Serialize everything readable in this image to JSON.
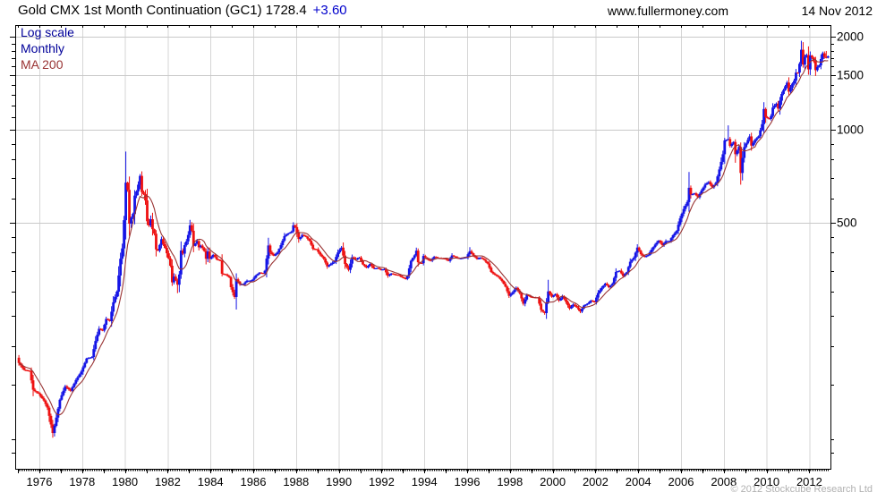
{
  "header": {
    "title": "Gold CMX 1st Month Continuation (GC1) 1728.4",
    "change": "+3.60",
    "website": "www.fullermoney.com",
    "date": "14 Nov 2012"
  },
  "legend": {
    "scale_label": "Log scale",
    "interval_label": "Monthly",
    "ma_label": "MA 200"
  },
  "footer": {
    "copyright": "© 2012 Stockcube Research Ltd"
  },
  "colors": {
    "up_candle": "#1414e6",
    "down_candle": "#ee1111",
    "ma_line": "#993333",
    "grid_vertical": "#d6d6d6",
    "grid_horizontal": "#c9c9c9",
    "axis": "#000000",
    "legend_blue": "#000099",
    "legend_brick": "#993333",
    "change_blue": "#0000cc",
    "copyright_gray": "#b0b0b0"
  },
  "chart_data": {
    "type": "candlestick",
    "symbol": "GC1",
    "scale": "log",
    "interval": "monthly",
    "ma_label": "MA 200",
    "last_price": 1728.4,
    "change": 3.6,
    "xlim_years": [
      1974.9,
      2012.95
    ],
    "ylim": [
      80,
      2180
    ],
    "y_ticks": [
      2000,
      1500,
      1000,
      500
    ],
    "y_minor_ticks": [
      90,
      100,
      150,
      200,
      250,
      300,
      350,
      400,
      450,
      500,
      600,
      700,
      800,
      900,
      1000,
      1100,
      1200,
      1300,
      1400,
      1500,
      1600,
      1700,
      1800,
      1900,
      2000
    ],
    "x_ticks": [
      1976,
      1978,
      1980,
      1982,
      1984,
      1986,
      1988,
      1990,
      1992,
      1994,
      1996,
      1998,
      2000,
      2002,
      2004,
      2006,
      2008,
      2010,
      2012
    ],
    "monthly_close_anchors": [
      [
        1975.04,
        176
      ],
      [
        1975.29,
        167
      ],
      [
        1975.54,
        166
      ],
      [
        1975.71,
        144
      ],
      [
        1975.96,
        140
      ],
      [
        1976.21,
        133
      ],
      [
        1976.38,
        126
      ],
      [
        1976.63,
        104
      ],
      [
        1976.79,
        117
      ],
      [
        1976.96,
        134
      ],
      [
        1977.21,
        148
      ],
      [
        1977.46,
        143
      ],
      [
        1977.71,
        155
      ],
      [
        1977.96,
        165
      ],
      [
        1978.21,
        182
      ],
      [
        1978.46,
        184
      ],
      [
        1978.63,
        208
      ],
      [
        1978.79,
        227
      ],
      [
        1978.96,
        224
      ],
      [
        1979.13,
        245
      ],
      [
        1979.29,
        240
      ],
      [
        1979.46,
        277
      ],
      [
        1979.63,
        300
      ],
      [
        1979.79,
        382
      ],
      [
        1979.88,
        415
      ],
      [
        1979.96,
        512
      ],
      [
        1980.04,
        675
      ],
      [
        1980.13,
        637
      ],
      [
        1980.21,
        494
      ],
      [
        1980.29,
        518
      ],
      [
        1980.38,
        535
      ],
      [
        1980.46,
        614
      ],
      [
        1980.54,
        631
      ],
      [
        1980.63,
        666
      ],
      [
        1980.71,
        710
      ],
      [
        1980.79,
        629
      ],
      [
        1980.88,
        619
      ],
      [
        1980.96,
        590
      ],
      [
        1981.04,
        506
      ],
      [
        1981.13,
        489
      ],
      [
        1981.21,
        514
      ],
      [
        1981.29,
        477
      ],
      [
        1981.38,
        460
      ],
      [
        1981.46,
        409
      ],
      [
        1981.54,
        406
      ],
      [
        1981.63,
        425
      ],
      [
        1981.71,
        443
      ],
      [
        1981.79,
        427
      ],
      [
        1981.88,
        414
      ],
      [
        1981.96,
        398
      ],
      [
        1982.04,
        384
      ],
      [
        1982.13,
        362
      ],
      [
        1982.21,
        320
      ],
      [
        1982.29,
        335
      ],
      [
        1982.38,
        325
      ],
      [
        1982.46,
        315
      ],
      [
        1982.54,
        339
      ],
      [
        1982.63,
        411
      ],
      [
        1982.71,
        397
      ],
      [
        1982.79,
        423
      ],
      [
        1982.88,
        436
      ],
      [
        1982.96,
        457
      ],
      [
        1983.04,
        491
      ],
      [
        1983.13,
        470
      ],
      [
        1983.21,
        420
      ],
      [
        1983.29,
        429
      ],
      [
        1983.38,
        437
      ],
      [
        1983.46,
        416
      ],
      [
        1983.54,
        422
      ],
      [
        1983.63,
        414
      ],
      [
        1983.71,
        405
      ],
      [
        1983.79,
        382
      ],
      [
        1983.88,
        405
      ],
      [
        1983.96,
        382
      ],
      [
        1984.13,
        394
      ],
      [
        1984.29,
        381
      ],
      [
        1984.46,
        377
      ],
      [
        1984.54,
        342
      ],
      [
        1984.71,
        340
      ],
      [
        1984.88,
        333
      ],
      [
        1984.96,
        309
      ],
      [
        1985.13,
        287
      ],
      [
        1985.21,
        329
      ],
      [
        1985.38,
        316
      ],
      [
        1985.54,
        317
      ],
      [
        1985.71,
        325
      ],
      [
        1985.88,
        325
      ],
      [
        1985.96,
        327
      ],
      [
        1986.13,
        338
      ],
      [
        1986.29,
        345
      ],
      [
        1986.46,
        343
      ],
      [
        1986.54,
        349
      ],
      [
        1986.63,
        385
      ],
      [
        1986.71,
        423
      ],
      [
        1986.79,
        401
      ],
      [
        1986.96,
        391
      ],
      [
        1987.13,
        401
      ],
      [
        1987.29,
        423
      ],
      [
        1987.46,
        453
      ],
      [
        1987.63,
        462
      ],
      [
        1987.79,
        468
      ],
      [
        1987.88,
        492
      ],
      [
        1987.96,
        484
      ],
      [
        1988.13,
        442
      ],
      [
        1988.29,
        457
      ],
      [
        1988.46,
        451
      ],
      [
        1988.63,
        437
      ],
      [
        1988.79,
        412
      ],
      [
        1988.96,
        410
      ],
      [
        1989.13,
        394
      ],
      [
        1989.29,
        383
      ],
      [
        1989.46,
        361
      ],
      [
        1989.63,
        368
      ],
      [
        1989.79,
        375
      ],
      [
        1989.96,
        401
      ],
      [
        1990.13,
        416
      ],
      [
        1990.29,
        368
      ],
      [
        1990.46,
        352
      ],
      [
        1990.63,
        388
      ],
      [
        1990.79,
        380
      ],
      [
        1990.96,
        386
      ],
      [
        1991.13,
        366
      ],
      [
        1991.29,
        358
      ],
      [
        1991.46,
        368
      ],
      [
        1991.63,
        356
      ],
      [
        1991.79,
        357
      ],
      [
        1991.96,
        353
      ],
      [
        1992.13,
        354
      ],
      [
        1992.29,
        337
      ],
      [
        1992.46,
        343
      ],
      [
        1992.63,
        340
      ],
      [
        1992.79,
        339
      ],
      [
        1992.96,
        333
      ],
      [
        1993.13,
        329
      ],
      [
        1993.21,
        337
      ],
      [
        1993.38,
        378
      ],
      [
        1993.54,
        392
      ],
      [
        1993.63,
        407
      ],
      [
        1993.71,
        372
      ],
      [
        1993.88,
        370
      ],
      [
        1993.96,
        391
      ],
      [
        1994.13,
        381
      ],
      [
        1994.29,
        377
      ],
      [
        1994.46,
        388
      ],
      [
        1994.63,
        385
      ],
      [
        1994.79,
        384
      ],
      [
        1994.96,
        383
      ],
      [
        1995.13,
        376
      ],
      [
        1995.29,
        392
      ],
      [
        1995.46,
        387
      ],
      [
        1995.63,
        383
      ],
      [
        1995.79,
        385
      ],
      [
        1995.96,
        387
      ],
      [
        1996.13,
        405
      ],
      [
        1996.29,
        392
      ],
      [
        1996.46,
        382
      ],
      [
        1996.63,
        386
      ],
      [
        1996.79,
        379
      ],
      [
        1996.96,
        369
      ],
      [
        1997.13,
        346
      ],
      [
        1997.29,
        340
      ],
      [
        1997.46,
        334
      ],
      [
        1997.63,
        324
      ],
      [
        1997.79,
        311
      ],
      [
        1997.96,
        290
      ],
      [
        1998.13,
        298
      ],
      [
        1998.29,
        308
      ],
      [
        1998.46,
        296
      ],
      [
        1998.63,
        273
      ],
      [
        1998.79,
        292
      ],
      [
        1998.96,
        288
      ],
      [
        1999.13,
        287
      ],
      [
        1999.29,
        287
      ],
      [
        1999.46,
        261
      ],
      [
        1999.63,
        255
      ],
      [
        1999.79,
        300
      ],
      [
        1999.96,
        288
      ],
      [
        2000.13,
        294
      ],
      [
        2000.29,
        280
      ],
      [
        2000.46,
        289
      ],
      [
        2000.63,
        277
      ],
      [
        2000.79,
        264
      ],
      [
        2000.96,
        272
      ],
      [
        2001.13,
        266
      ],
      [
        2001.29,
        258
      ],
      [
        2001.46,
        270
      ],
      [
        2001.63,
        274
      ],
      [
        2001.79,
        280
      ],
      [
        2001.96,
        277
      ],
      [
        2002.13,
        297
      ],
      [
        2002.29,
        308
      ],
      [
        2002.46,
        318
      ],
      [
        2002.63,
        309
      ],
      [
        2002.79,
        317
      ],
      [
        2002.96,
        347
      ],
      [
        2003.13,
        350
      ],
      [
        2003.29,
        336
      ],
      [
        2003.46,
        346
      ],
      [
        2003.63,
        375
      ],
      [
        2003.79,
        385
      ],
      [
        2003.96,
        416
      ],
      [
        2004.13,
        395
      ],
      [
        2004.29,
        388
      ],
      [
        2004.46,
        393
      ],
      [
        2004.63,
        410
      ],
      [
        2004.79,
        425
      ],
      [
        2004.96,
        438
      ],
      [
        2005.13,
        423
      ],
      [
        2005.29,
        436
      ],
      [
        2005.46,
        437
      ],
      [
        2005.63,
        456
      ],
      [
        2005.79,
        470
      ],
      [
        2005.96,
        517
      ],
      [
        2006.13,
        555
      ],
      [
        2006.29,
        582
      ],
      [
        2006.38,
        653
      ],
      [
        2006.46,
        616
      ],
      [
        2006.63,
        623
      ],
      [
        2006.79,
        604
      ],
      [
        2006.96,
        636
      ],
      [
        2007.13,
        665
      ],
      [
        2007.29,
        678
      ],
      [
        2007.46,
        651
      ],
      [
        2007.63,
        673
      ],
      [
        2007.79,
        743
      ],
      [
        2007.96,
        834
      ],
      [
        2008.04,
        923
      ],
      [
        2008.21,
        933
      ],
      [
        2008.29,
        886
      ],
      [
        2008.46,
        913
      ],
      [
        2008.54,
        833
      ],
      [
        2008.71,
        880
      ],
      [
        2008.79,
        723
      ],
      [
        2008.88,
        816
      ],
      [
        2008.96,
        880
      ],
      [
        2009.13,
        928
      ],
      [
        2009.21,
        952
      ],
      [
        2009.29,
        888
      ],
      [
        2009.46,
        927
      ],
      [
        2009.63,
        953
      ],
      [
        2009.71,
        996
      ],
      [
        2009.79,
        1040
      ],
      [
        2009.88,
        1175
      ],
      [
        2009.96,
        1097
      ],
      [
        2010.13,
        1083
      ],
      [
        2010.21,
        1108
      ],
      [
        2010.29,
        1179
      ],
      [
        2010.46,
        1215
      ],
      [
        2010.54,
        1169
      ],
      [
        2010.63,
        1246
      ],
      [
        2010.71,
        1307
      ],
      [
        2010.79,
        1342
      ],
      [
        2010.88,
        1385
      ],
      [
        2010.96,
        1421
      ],
      [
        2011.04,
        1327
      ],
      [
        2011.21,
        1411
      ],
      [
        2011.29,
        1439
      ],
      [
        2011.38,
        1536
      ],
      [
        2011.46,
        1530
      ],
      [
        2011.54,
        1631
      ],
      [
        2011.63,
        1826
      ],
      [
        2011.71,
        1620
      ],
      [
        2011.79,
        1722
      ],
      [
        2011.88,
        1746
      ],
      [
        2011.96,
        1564
      ],
      [
        2012.04,
        1737
      ],
      [
        2012.13,
        1711
      ],
      [
        2012.21,
        1664
      ],
      [
        2012.29,
        1558
      ],
      [
        2012.38,
        1598
      ],
      [
        2012.46,
        1615
      ],
      [
        2012.54,
        1692
      ],
      [
        2012.63,
        1772
      ],
      [
        2012.71,
        1719
      ],
      [
        2012.79,
        1711
      ],
      [
        2012.88,
        1728.4
      ]
    ],
    "wick_extremes": {
      "highs": [
        [
          1980.04,
          850
        ],
        [
          1983.04,
          511
        ],
        [
          1987.88,
          502
        ],
        [
          1996.13,
          417
        ],
        [
          1999.79,
          327
        ],
        [
          2006.38,
          730
        ],
        [
          2008.21,
          1033
        ],
        [
          2011.71,
          1920
        ],
        [
          2012.79,
          1798
        ]
      ],
      "lows": [
        [
          1976.63,
          101
        ],
        [
          1980.21,
          453
        ],
        [
          1982.46,
          296
        ],
        [
          1985.13,
          284
        ],
        [
          1989.46,
          355
        ],
        [
          1993.21,
          326
        ],
        [
          1999.63,
          252
        ],
        [
          2001.29,
          255
        ],
        [
          2008.79,
          681
        ]
      ]
    }
  }
}
